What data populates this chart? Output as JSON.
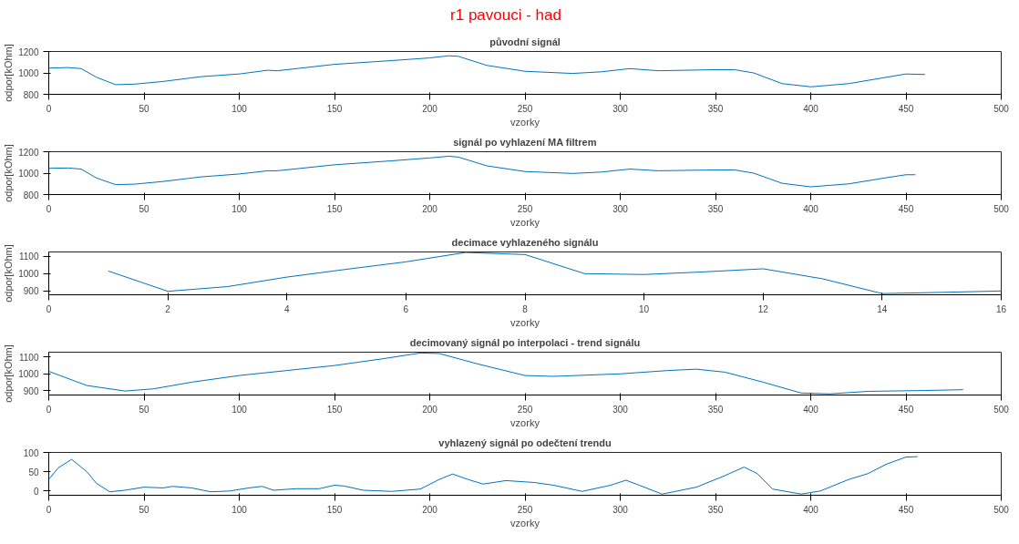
{
  "chart_data": [
    {
      "type": "line",
      "title": "původní signál",
      "xlabel": "vzorky",
      "ylabel": "odpor[kOhm]",
      "annotations": [
        "r1 pavouci - had"
      ],
      "xlim": [
        0,
        500
      ],
      "ylim": [
        800,
        1200
      ],
      "xticks": [
        0,
        50,
        100,
        150,
        200,
        250,
        300,
        350,
        400,
        450,
        500
      ],
      "yticks": [
        800,
        1000,
        1200
      ],
      "grid": false,
      "series": [
        {
          "color": "#0072bd",
          "x": [
            0,
            10,
            17,
            25,
            35,
            45,
            60,
            80,
            100,
            115,
            120,
            150,
            180,
            200,
            210,
            215,
            230,
            250,
            275,
            290,
            305,
            320,
            350,
            360,
            370,
            385,
            400,
            420,
            440,
            450,
            460
          ],
          "values": [
            1045,
            1050,
            1040,
            960,
            890,
            895,
            920,
            965,
            990,
            1025,
            1020,
            1080,
            1115,
            1140,
            1160,
            1155,
            1070,
            1015,
            995,
            1010,
            1040,
            1020,
            1030,
            1030,
            1000,
            900,
            870,
            900,
            960,
            990,
            985
          ]
        }
      ]
    },
    {
      "type": "line",
      "title": "signál po vyhlazení MA filtrem",
      "xlabel": "vzorky",
      "ylabel": "odpor[kOhm]",
      "xlim": [
        0,
        500
      ],
      "ylim": [
        800,
        1200
      ],
      "xticks": [
        0,
        50,
        100,
        150,
        200,
        250,
        300,
        350,
        400,
        450,
        500
      ],
      "yticks": [
        800,
        1000,
        1200
      ],
      "grid": false,
      "series": [
        {
          "color": "#0072bd",
          "x": [
            0,
            10,
            17,
            25,
            35,
            45,
            60,
            80,
            100,
            115,
            120,
            150,
            180,
            200,
            210,
            215,
            230,
            250,
            275,
            290,
            305,
            320,
            350,
            360,
            370,
            385,
            400,
            420,
            440,
            450,
            455
          ],
          "values": [
            1045,
            1048,
            1038,
            955,
            893,
            897,
            922,
            965,
            992,
            1022,
            1022,
            1078,
            1115,
            1142,
            1158,
            1150,
            1068,
            1015,
            997,
            1010,
            1038,
            1022,
            1030,
            1030,
            1000,
            905,
            872,
            900,
            958,
            985,
            985
          ]
        }
      ]
    },
    {
      "type": "line",
      "title": "decimace vyhlazeného signálu",
      "xlabel": "vzorky",
      "ylabel": "odpor[kOhm]",
      "xlim": [
        0,
        16
      ],
      "ylim": [
        878,
        1125
      ],
      "xticks": [
        0,
        2,
        4,
        6,
        8,
        10,
        12,
        14,
        16
      ],
      "yticks": [
        900,
        1000,
        1100
      ],
      "grid": false,
      "series": [
        {
          "color": "#0072bd",
          "x": [
            1,
            2,
            3,
            4,
            5,
            6,
            7,
            8,
            9,
            10,
            11,
            12,
            13,
            14,
            15,
            16
          ],
          "values": [
            1015,
            898,
            925,
            980,
            1025,
            1068,
            1122,
            1110,
            1000,
            995,
            1010,
            1028,
            970,
            885,
            892,
            900
          ]
        }
      ]
    },
    {
      "type": "line",
      "title": "decimovaný signál po interpolaci - trend signálu",
      "xlabel": "vzorky",
      "ylabel": "odpor[kOhm]",
      "xlim": [
        0,
        500
      ],
      "ylim": [
        873,
        1130
      ],
      "xticks": [
        0,
        50,
        100,
        150,
        200,
        250,
        300,
        350,
        400,
        450,
        500
      ],
      "yticks": [
        900,
        1000,
        1100
      ],
      "grid": false,
      "series": [
        {
          "color": "#0072bd",
          "x": [
            0,
            20,
            40,
            55,
            75,
            100,
            125,
            150,
            175,
            195,
            205,
            225,
            250,
            265,
            300,
            325,
            340,
            355,
            375,
            395,
            410,
            430,
            460,
            480
          ],
          "values": [
            1015,
            930,
            897,
            910,
            950,
            990,
            1020,
            1050,
            1090,
            1125,
            1122,
            1060,
            990,
            985,
            1000,
            1020,
            1028,
            1010,
            950,
            885,
            880,
            895,
            900,
            905
          ]
        }
      ]
    },
    {
      "type": "line",
      "title": "vyhlazený signál po odečtení trendu",
      "xlabel": "vzorky",
      "xlim": [
        0,
        500
      ],
      "ylim": [
        -11,
        100
      ],
      "xticks": [
        0,
        50,
        100,
        150,
        200,
        250,
        300,
        350,
        400,
        450,
        500
      ],
      "yticks": [
        0,
        50,
        100
      ],
      "grid": false,
      "series": [
        {
          "color": "#0072bd",
          "x": [
            0,
            5,
            12,
            20,
            25,
            32,
            40,
            50,
            60,
            65,
            75,
            85,
            95,
            105,
            112,
            118,
            130,
            142,
            150,
            155,
            165,
            180,
            195,
            205,
            212,
            220,
            228,
            240,
            255,
            265,
            280,
            295,
            303,
            310,
            322,
            340,
            355,
            365,
            372,
            380,
            395,
            405,
            420,
            430,
            440,
            450,
            456
          ],
          "values": [
            30,
            60,
            82,
            50,
            20,
            -2,
            2,
            10,
            8,
            12,
            8,
            -2,
            0,
            8,
            12,
            2,
            6,
            6,
            15,
            13,
            2,
            -1,
            5,
            30,
            44,
            30,
            18,
            27,
            22,
            15,
            -1,
            15,
            28,
            15,
            -8,
            10,
            40,
            62,
            45,
            5,
            -8,
            0,
            30,
            45,
            70,
            88,
            89
          ]
        }
      ]
    }
  ]
}
